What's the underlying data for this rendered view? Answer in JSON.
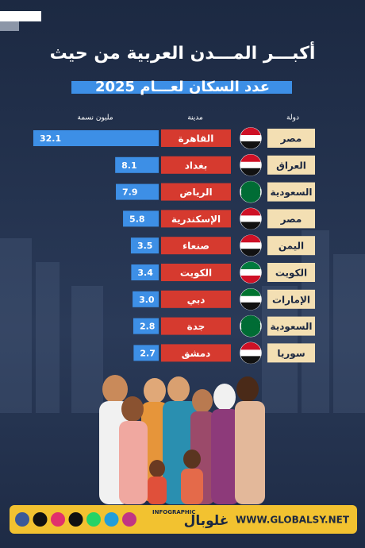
{
  "chart_data": {
    "type": "bar",
    "title": "أكبـــر المـــدن العربية من حيث",
    "subtitle": "عدد السكان لعـــام 2025",
    "headers": {
      "country": "دولة",
      "city": "مدينة",
      "value": "مليون نسمة"
    },
    "countries": [
      "مصر",
      "العراق",
      "السعودية",
      "مصر",
      "اليمن",
      "الكويت",
      "الإمارات",
      "السعودية",
      "سوريا"
    ],
    "categories": [
      "القاهرة",
      "بغداد",
      "الرياض",
      "الإسكندرية",
      "صنعاء",
      "الكويت",
      "دبي",
      "جدة",
      "دمشق"
    ],
    "values": [
      32.1,
      8.1,
      7.9,
      5.8,
      3.5,
      3.4,
      3,
      2.8,
      2.7
    ],
    "value_labels": [
      "32.1",
      "8.1",
      "7.9",
      "5.8",
      "3.5",
      "3.4",
      "3.0",
      "2.8",
      "2.7"
    ],
    "color": "#3d8fe6"
  },
  "footer": {
    "label": "INFOGRAPHIC",
    "brand": "غلوبال",
    "website": "WWW.GLOBALSY.NET"
  }
}
